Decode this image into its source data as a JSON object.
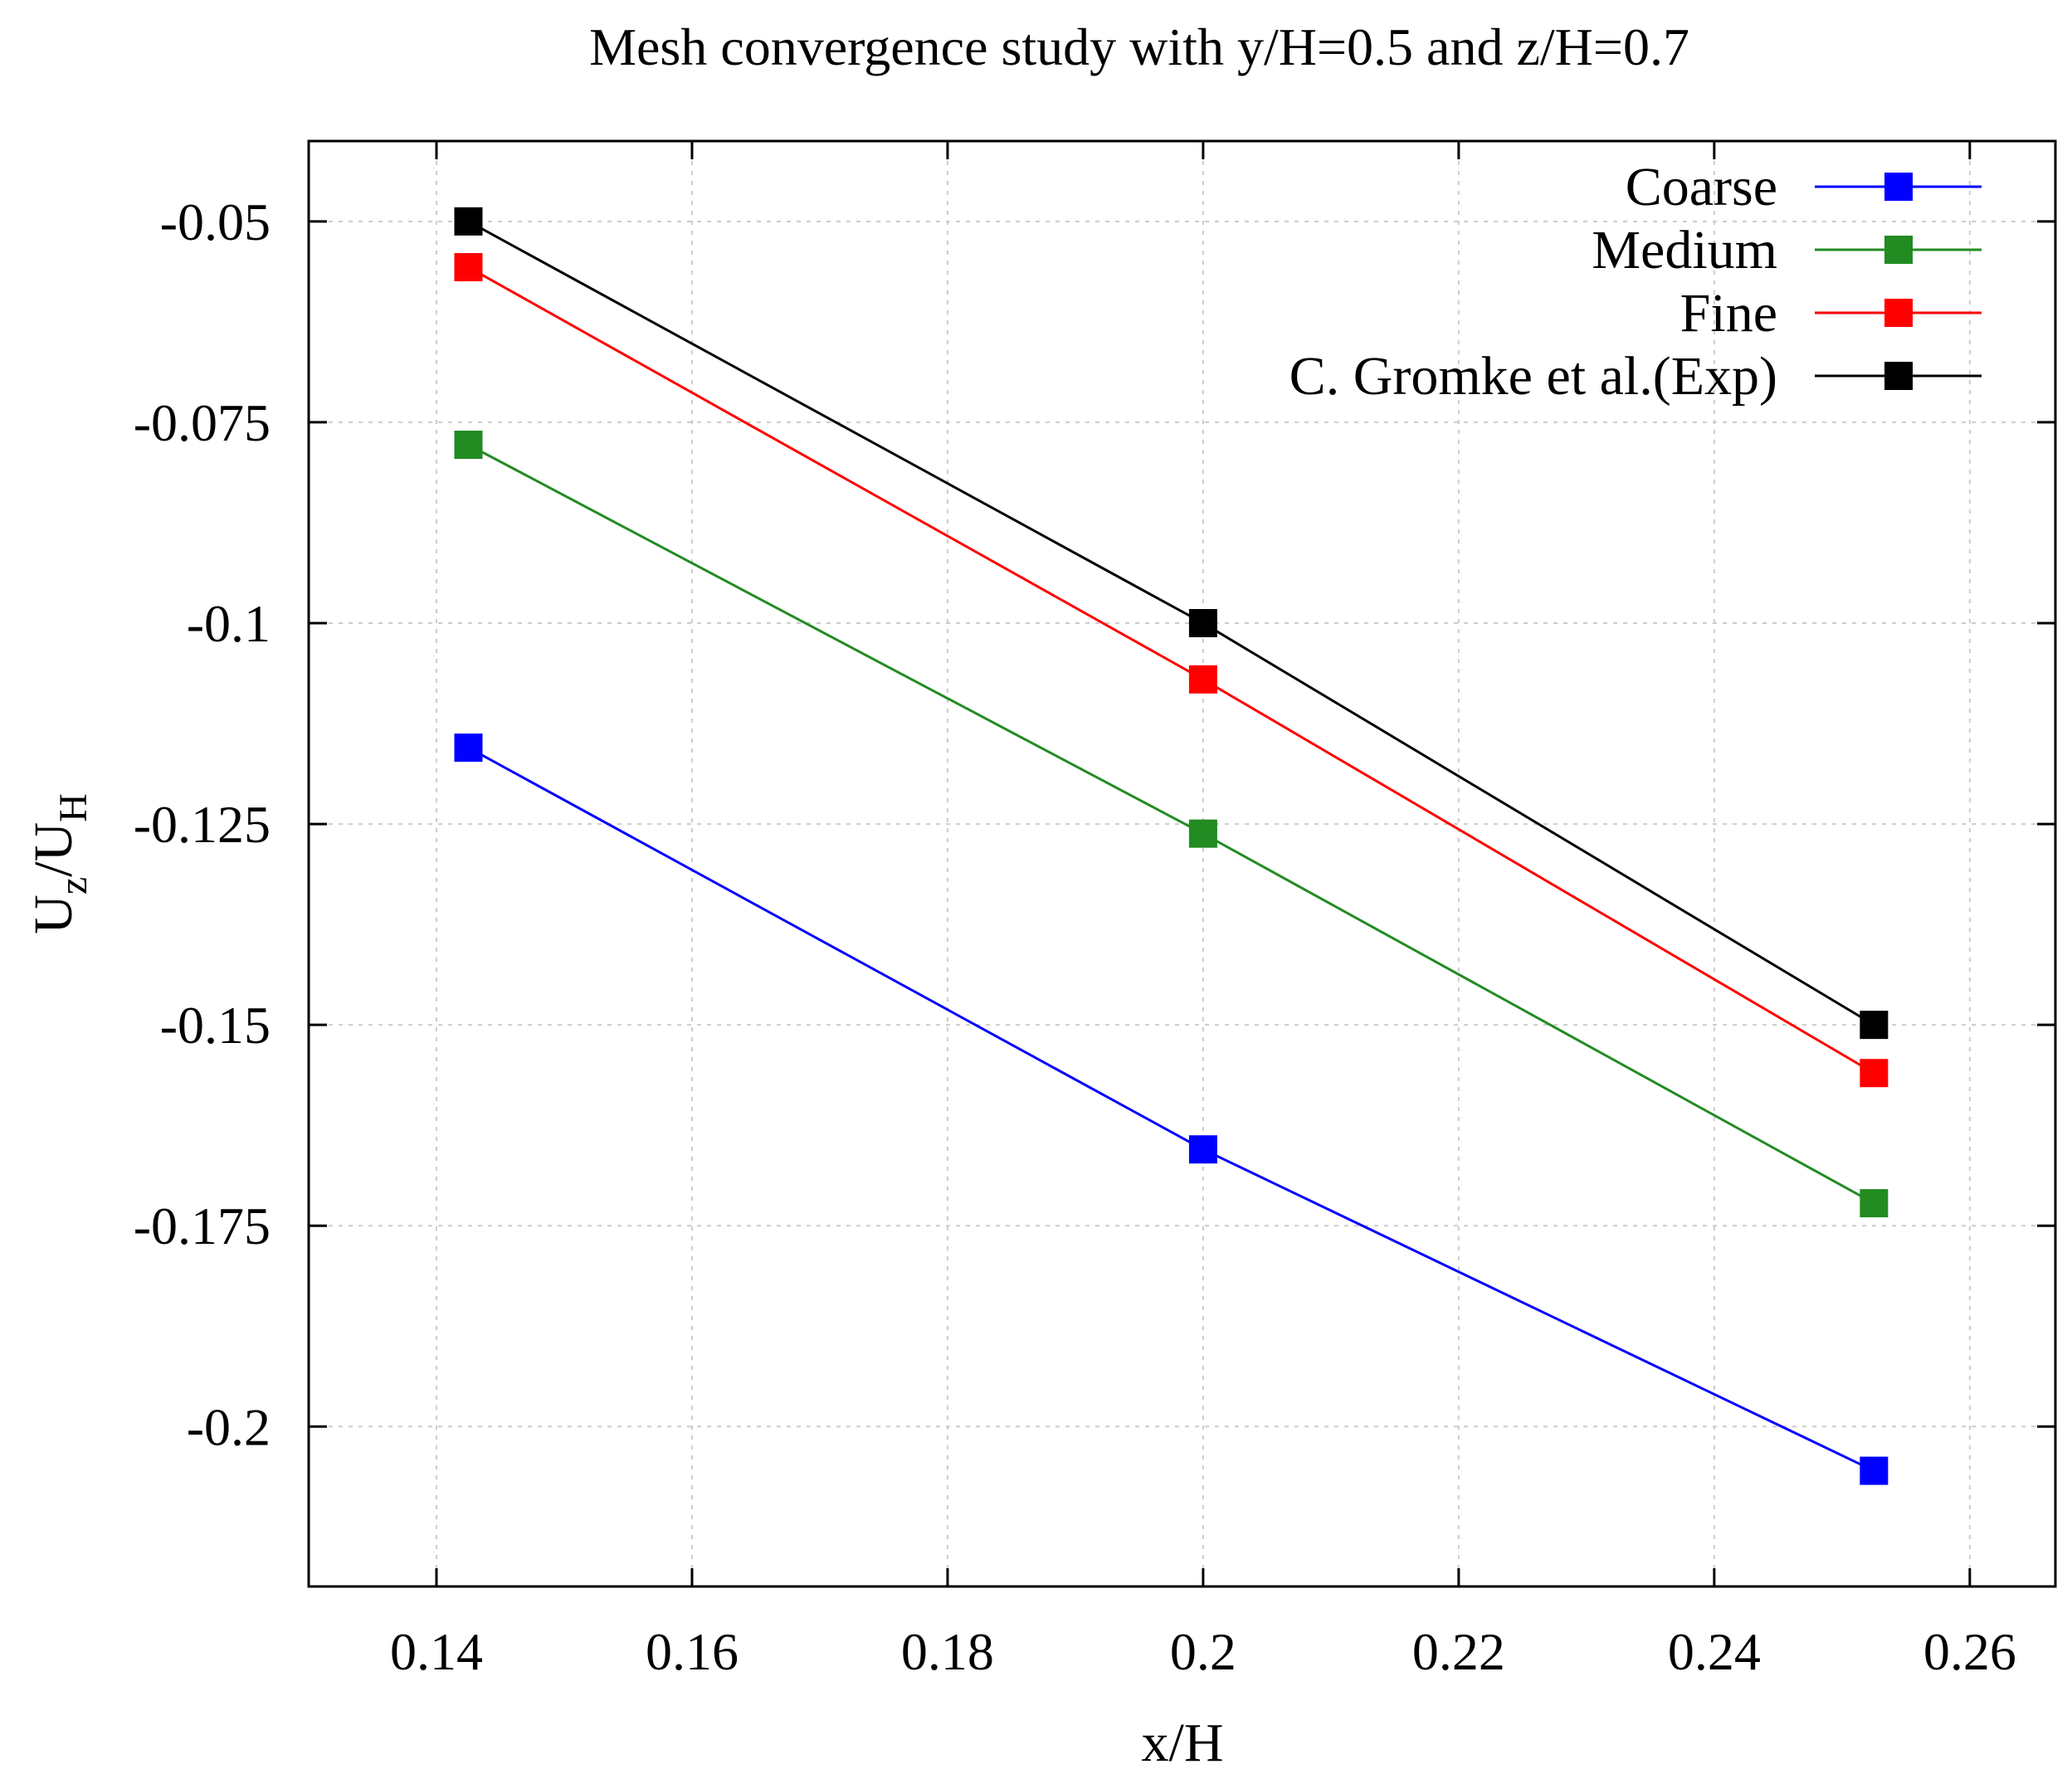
{
  "chart_data": {
    "type": "line",
    "title": "Mesh convergence study with y/H=0.5 and z/H=0.7",
    "xlabel": "x/H",
    "ylabel_main": "U",
    "ylabel_sub1": "z",
    "ylabel_slash": "/U",
    "ylabel_sub2": "H",
    "xlim": [
      0.13,
      0.2667
    ],
    "ylim": [
      -0.2199,
      -0.04
    ],
    "grid": true,
    "legend_position": "top-right",
    "x_ticks": [
      0.14,
      0.16,
      0.18,
      0.2,
      0.22,
      0.24,
      0.26
    ],
    "x_tick_labels": [
      "0.14",
      "0.16",
      "0.18",
      "0.2",
      "0.22",
      "0.24",
      "0.26"
    ],
    "y_ticks": [
      -0.05,
      -0.075,
      -0.1,
      -0.125,
      -0.15,
      -0.175,
      -0.2
    ],
    "y_tick_labels": [
      "-0.05",
      "-0.075",
      "-0.1",
      "-0.125",
      "-0.15",
      "-0.175",
      "-0.2"
    ],
    "x": [
      0.1425,
      0.2,
      0.2525
    ],
    "series": [
      {
        "name": "Coarse",
        "color": "#0000ff",
        "values": [
          -0.1155,
          -0.1655,
          -0.2055
        ]
      },
      {
        "name": "Medium",
        "color": "#228b22",
        "values": [
          -0.0778,
          -0.1262,
          -0.1722
        ]
      },
      {
        "name": "Fine",
        "color": "#ff0000",
        "values": [
          -0.0557,
          -0.107,
          -0.156
        ]
      },
      {
        "name": "C. Gromke et al.(Exp)",
        "color": "#000000",
        "values": [
          -0.05,
          -0.1,
          -0.15
        ]
      }
    ]
  }
}
